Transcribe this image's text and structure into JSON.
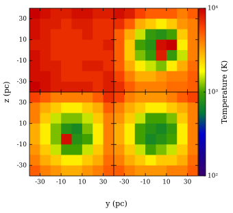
{
  "chart_data": {
    "type": "heatmap-grid",
    "xlabel": "y (pc)",
    "ylabel": "z (pc)",
    "xlim": [
      -40,
      40
    ],
    "ylim": [
      -40,
      40
    ],
    "xticks": [
      -30,
      -10,
      10,
      30
    ],
    "yticks": [
      -30,
      -10,
      10,
      30
    ],
    "colormap": [
      "#3a006e",
      "#1a0090",
      "#0000d0",
      "#007a3a",
      "#40a000",
      "#ffff00",
      "#ffa500",
      "#ff4a00",
      "#c80000"
    ],
    "colorbar": {
      "label": "Temperature (K)",
      "log": true,
      "lim": [
        100,
        10000
      ],
      "ticks": [
        {
          "value": 100,
          "label": "10²"
        },
        {
          "value": 1000,
          "label": "10³"
        },
        {
          "value": 10000,
          "label": "10⁴"
        }
      ]
    },
    "panels": [
      {
        "values": [
          [
            10000,
            9000,
            8000,
            8000,
            9000,
            9000,
            8000,
            8000
          ],
          [
            9000,
            8000,
            8000,
            7000,
            8000,
            8000,
            7000,
            7000
          ],
          [
            9000,
            8000,
            7000,
            7000,
            7000,
            8000,
            7000,
            7000
          ],
          [
            8000,
            8000,
            7000,
            7000,
            7000,
            7000,
            7000,
            8000
          ],
          [
            9000,
            8000,
            7000,
            7000,
            7000,
            7000,
            7000,
            7000
          ],
          [
            9000,
            8000,
            8000,
            7000,
            7000,
            8000,
            8000,
            7000
          ],
          [
            9000,
            9000,
            8000,
            7000,
            7000,
            7000,
            7000,
            8000
          ],
          [
            10000,
            9000,
            8000,
            8000,
            8000,
            8000,
            7000,
            8000
          ]
        ]
      },
      {
        "values": [
          [
            9000,
            8000,
            6000,
            5000,
            5000,
            5000,
            4000,
            5000
          ],
          [
            7000,
            5000,
            3000,
            2500,
            2000,
            2500,
            3500,
            4000
          ],
          [
            5000,
            3000,
            1500,
            900,
            800,
            1000,
            2500,
            4000
          ],
          [
            5000,
            2500,
            1000,
            800,
            9000,
            10000,
            2000,
            4000
          ],
          [
            5000,
            2500,
            1200,
            900,
            8000,
            900,
            1500,
            4000
          ],
          [
            5000,
            3000,
            2000,
            1500,
            1200,
            2000,
            3000,
            4500
          ],
          [
            6000,
            4000,
            3000,
            3000,
            3500,
            4000,
            4000,
            5000
          ],
          [
            7000,
            5000,
            4000,
            4000,
            4000,
            4500,
            4500,
            5000
          ]
        ]
      },
      {
        "values": [
          [
            6000,
            5000,
            4000,
            4000,
            4000,
            4000,
            5000,
            7000
          ],
          [
            4000,
            3000,
            2500,
            2000,
            2000,
            2500,
            3000,
            5000
          ],
          [
            4000,
            2500,
            1500,
            1200,
            1200,
            1500,
            2500,
            4000
          ],
          [
            3000,
            2000,
            1200,
            800,
            700,
            1200,
            2000,
            4000
          ],
          [
            3000,
            2000,
            1200,
            9000,
            800,
            1000,
            2000,
            4000
          ],
          [
            3500,
            2500,
            1500,
            1000,
            1000,
            1500,
            2500,
            4000
          ],
          [
            4000,
            3000,
            2500,
            2000,
            2000,
            2500,
            3000,
            4500
          ],
          [
            5000,
            4000,
            3500,
            3000,
            3000,
            3500,
            4000,
            5000
          ]
        ]
      },
      {
        "values": [
          [
            6000,
            4000,
            3500,
            3500,
            3500,
            4000,
            5000,
            6000
          ],
          [
            4000,
            3000,
            2500,
            2000,
            2000,
            2500,
            3000,
            4000
          ],
          [
            3500,
            2500,
            1500,
            1000,
            1000,
            1200,
            2500,
            4000
          ],
          [
            3000,
            2000,
            1000,
            800,
            700,
            900,
            2000,
            4000
          ],
          [
            3000,
            2000,
            1000,
            700,
            800,
            1000,
            2000,
            4000
          ],
          [
            3500,
            2500,
            1500,
            1000,
            1200,
            1500,
            2500,
            4000
          ],
          [
            4000,
            3000,
            2500,
            2000,
            2500,
            2500,
            3000,
            4500
          ],
          [
            5000,
            4000,
            3500,
            3500,
            3500,
            4000,
            4000,
            5000
          ]
        ]
      }
    ]
  }
}
